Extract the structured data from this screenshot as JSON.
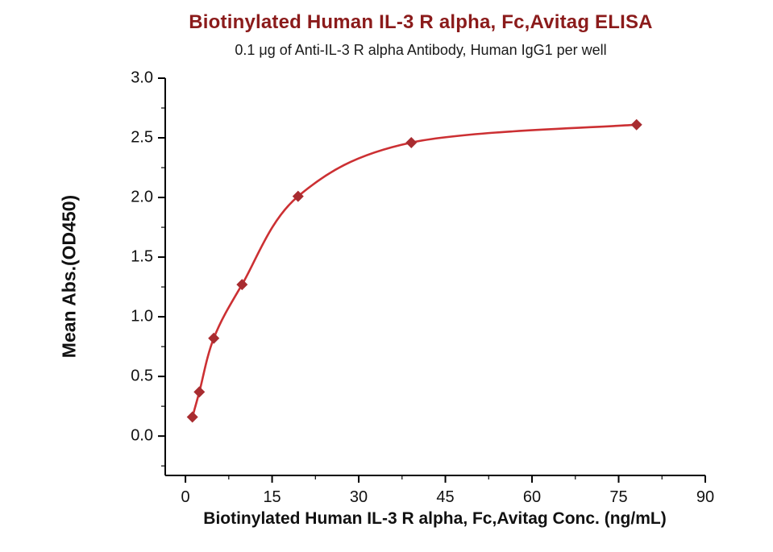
{
  "chart_data": {
    "type": "scatter",
    "title": "Biotinylated Human IL-3 R alpha, Fc,Avitag ELISA",
    "subtitle": "0.1 μg of Anti-IL-3 R alpha Antibody, Human IgG1 per well",
    "xlabel": "Biotinylated Human IL-3 R alpha, Fc,Avitag Conc. (ng/mL)",
    "ylabel": "Mean Abs.(OD450)",
    "xlim": [
      -3.5,
      90
    ],
    "ylim": [
      -0.33,
      3.0
    ],
    "x_ticks": [
      "0",
      "15",
      "30",
      "45",
      "60",
      "75",
      "90"
    ],
    "y_ticks": [
      "0.0",
      "0.5",
      "1.0",
      "1.5",
      "2.0",
      "2.5",
      "3.0"
    ],
    "x_minor_step": 7.5,
    "y_minor_step": 0.25,
    "grid": false,
    "legend": "none",
    "points": [
      {
        "x": 1.2,
        "y": 0.16
      },
      {
        "x": 2.4,
        "y": 0.37
      },
      {
        "x": 4.9,
        "y": 0.82
      },
      {
        "x": 9.8,
        "y": 1.27
      },
      {
        "x": 19.5,
        "y": 2.01
      },
      {
        "x": 39.1,
        "y": 2.46
      },
      {
        "x": 78.1,
        "y": 2.61
      }
    ],
    "series_name": "Biotinylated Human IL-3 R alpha, Fc,Avitag",
    "curve": "4PL-style smooth fit through points",
    "colors": {
      "title": "#8b1b1b",
      "line": "#cc3033",
      "marker": "#a82c30",
      "axis": "#000000",
      "tick_text": "#111111"
    }
  }
}
